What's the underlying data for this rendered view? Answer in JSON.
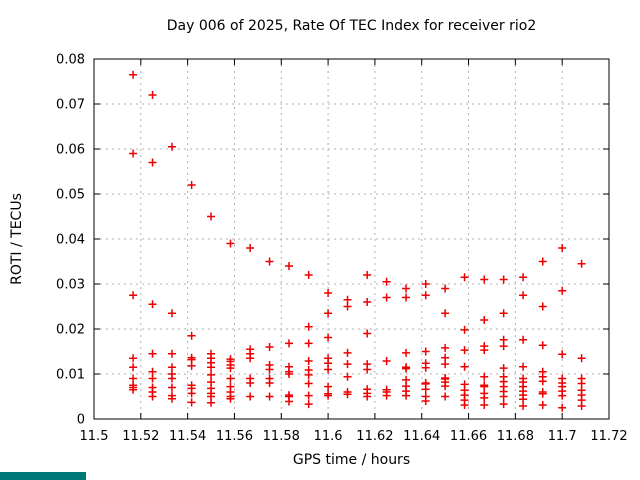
{
  "page": {
    "background": "#ffffff"
  },
  "decor": {
    "taskbar_fragment_color": "#007878"
  },
  "chart_data": {
    "type": "scatter",
    "title": "Day 006 of 2025, Rate Of TEC Index for receiver rio2",
    "xlabel": "GPS time / hours",
    "ylabel": "ROTI / TECUs",
    "xlim": [
      11.5,
      11.72
    ],
    "ylim": [
      0,
      0.08
    ],
    "grid": true,
    "legend_position": "none",
    "marker": "plus",
    "colors": {
      "marker": "#ee0000",
      "grid": "#b0b0b0",
      "axis": "#000000",
      "text": "#000000"
    },
    "xticks": {
      "values": [
        11.5,
        11.52,
        11.54,
        11.56,
        11.58,
        11.6,
        11.62,
        11.64,
        11.66,
        11.68,
        11.7,
        11.72
      ],
      "labels": [
        "11.5",
        "11.52",
        "11.54",
        "11.56",
        "11.58",
        "11.6",
        "11.62",
        "11.64",
        "11.66",
        "11.68",
        "11.7",
        "11.72"
      ]
    },
    "yticks": {
      "values": [
        0,
        0.01,
        0.02,
        0.03,
        0.04,
        0.05,
        0.06,
        0.07,
        0.08
      ],
      "labels": [
        "0",
        "0.01",
        "0.02",
        "0.03",
        "0.04",
        "0.05",
        "0.06",
        "0.07",
        "0.08"
      ]
    },
    "points": [
      [
        11.5167,
        0.0765
      ],
      [
        11.5167,
        0.059
      ],
      [
        11.5167,
        0.0275
      ],
      [
        11.5167,
        0.0135
      ],
      [
        11.5167,
        0.0115
      ],
      [
        11.5167,
        0.009
      ],
      [
        11.5167,
        0.0075
      ],
      [
        11.5167,
        0.007
      ],
      [
        11.5167,
        0.0065
      ],
      [
        11.525,
        0.072
      ],
      [
        11.525,
        0.057
      ],
      [
        11.525,
        0.0255
      ],
      [
        11.525,
        0.0145
      ],
      [
        11.525,
        0.0105
      ],
      [
        11.525,
        0.009
      ],
      [
        11.525,
        0.007
      ],
      [
        11.525,
        0.006
      ],
      [
        11.525,
        0.005
      ],
      [
        11.5333,
        0.0605
      ],
      [
        11.5333,
        0.0235
      ],
      [
        11.5333,
        0.0145
      ],
      [
        11.5333,
        0.0115
      ],
      [
        11.5333,
        0.01
      ],
      [
        11.5333,
        0.009
      ],
      [
        11.5333,
        0.007
      ],
      [
        11.5333,
        0.0052
      ],
      [
        11.5333,
        0.0045
      ],
      [
        11.5417,
        0.052
      ],
      [
        11.5417,
        0.0185
      ],
      [
        11.5417,
        0.0136
      ],
      [
        11.5417,
        0.0132
      ],
      [
        11.5417,
        0.0118
      ],
      [
        11.5417,
        0.0075
      ],
      [
        11.5417,
        0.0068
      ],
      [
        11.5417,
        0.0057
      ],
      [
        11.5417,
        0.0037
      ],
      [
        11.55,
        0.045
      ],
      [
        11.55,
        0.0145
      ],
      [
        11.55,
        0.0135
      ],
      [
        11.55,
        0.0125
      ],
      [
        11.55,
        0.0115
      ],
      [
        11.55,
        0.0098
      ],
      [
        11.55,
        0.0082
      ],
      [
        11.55,
        0.0068
      ],
      [
        11.55,
        0.0057
      ],
      [
        11.55,
        0.005
      ],
      [
        11.55,
        0.0036
      ],
      [
        11.5583,
        0.039
      ],
      [
        11.5583,
        0.0133
      ],
      [
        11.5583,
        0.0128
      ],
      [
        11.5583,
        0.012
      ],
      [
        11.5583,
        0.0113
      ],
      [
        11.5583,
        0.009
      ],
      [
        11.5583,
        0.0072
      ],
      [
        11.5583,
        0.006
      ],
      [
        11.5583,
        0.005
      ],
      [
        11.5583,
        0.0045
      ],
      [
        11.5667,
        0.038
      ],
      [
        11.5667,
        0.0155
      ],
      [
        11.5667,
        0.0145
      ],
      [
        11.5667,
        0.0135
      ],
      [
        11.5667,
        0.009
      ],
      [
        11.5667,
        0.008
      ],
      [
        11.5667,
        0.005
      ],
      [
        11.575,
        0.035
      ],
      [
        11.575,
        0.016
      ],
      [
        11.575,
        0.012
      ],
      [
        11.575,
        0.011
      ],
      [
        11.575,
        0.009
      ],
      [
        11.575,
        0.008
      ],
      [
        11.575,
        0.005
      ],
      [
        11.5833,
        0.034
      ],
      [
        11.5833,
        0.0168
      ],
      [
        11.5833,
        0.0116
      ],
      [
        11.5833,
        0.0105
      ],
      [
        11.5833,
        0.01
      ],
      [
        11.5833,
        0.0053
      ],
      [
        11.5833,
        0.005
      ],
      [
        11.5833,
        0.0039
      ],
      [
        11.5917,
        0.032
      ],
      [
        11.5917,
        0.0205
      ],
      [
        11.5917,
        0.0168
      ],
      [
        11.5917,
        0.0129
      ],
      [
        11.5917,
        0.0109
      ],
      [
        11.5917,
        0.0098
      ],
      [
        11.5917,
        0.0079
      ],
      [
        11.5917,
        0.0052
      ],
      [
        11.5917,
        0.0033
      ],
      [
        11.6,
        0.028
      ],
      [
        11.6,
        0.0235
      ],
      [
        11.6,
        0.0181
      ],
      [
        11.6,
        0.0135
      ],
      [
        11.6,
        0.0124
      ],
      [
        11.6,
        0.011
      ],
      [
        11.6,
        0.0072
      ],
      [
        11.6,
        0.0056
      ],
      [
        11.6,
        0.0052
      ],
      [
        11.6083,
        0.0265
      ],
      [
        11.6083,
        0.025
      ],
      [
        11.6083,
        0.0147
      ],
      [
        11.6083,
        0.0122
      ],
      [
        11.6083,
        0.0094
      ],
      [
        11.6083,
        0.006
      ],
      [
        11.6083,
        0.0055
      ],
      [
        11.6167,
        0.032
      ],
      [
        11.6167,
        0.026
      ],
      [
        11.6167,
        0.019
      ],
      [
        11.6167,
        0.0122
      ],
      [
        11.6167,
        0.011
      ],
      [
        11.6167,
        0.0066
      ],
      [
        11.6167,
        0.0057
      ],
      [
        11.6167,
        0.005
      ],
      [
        11.625,
        0.0305
      ],
      [
        11.625,
        0.027
      ],
      [
        11.625,
        0.0129
      ],
      [
        11.625,
        0.0065
      ],
      [
        11.625,
        0.006
      ],
      [
        11.625,
        0.0052
      ],
      [
        11.6333,
        0.029
      ],
      [
        11.6333,
        0.027
      ],
      [
        11.6333,
        0.0147
      ],
      [
        11.6333,
        0.0115
      ],
      [
        11.6333,
        0.0112
      ],
      [
        11.6333,
        0.0087
      ],
      [
        11.6333,
        0.0073
      ],
      [
        11.6333,
        0.0062
      ],
      [
        11.6333,
        0.0052
      ],
      [
        11.6417,
        0.03
      ],
      [
        11.6417,
        0.0275
      ],
      [
        11.6417,
        0.015
      ],
      [
        11.6417,
        0.0124
      ],
      [
        11.6417,
        0.0114
      ],
      [
        11.6417,
        0.008
      ],
      [
        11.6417,
        0.0078
      ],
      [
        11.6417,
        0.0066
      ],
      [
        11.6417,
        0.005
      ],
      [
        11.6417,
        0.004
      ],
      [
        11.65,
        0.029
      ],
      [
        11.65,
        0.0235
      ],
      [
        11.65,
        0.0158
      ],
      [
        11.65,
        0.0136
      ],
      [
        11.65,
        0.0122
      ],
      [
        11.65,
        0.0091
      ],
      [
        11.65,
        0.0089
      ],
      [
        11.65,
        0.0082
      ],
      [
        11.65,
        0.0073
      ],
      [
        11.65,
        0.005
      ],
      [
        11.6583,
        0.0315
      ],
      [
        11.6583,
        0.0198
      ],
      [
        11.6583,
        0.0153
      ],
      [
        11.6583,
        0.0116
      ],
      [
        11.6583,
        0.0077
      ],
      [
        11.6583,
        0.0064
      ],
      [
        11.6583,
        0.0053
      ],
      [
        11.6583,
        0.0042
      ],
      [
        11.6583,
        0.0031
      ],
      [
        11.6667,
        0.031
      ],
      [
        11.6667,
        0.022
      ],
      [
        11.6667,
        0.0162
      ],
      [
        11.6667,
        0.0153
      ],
      [
        11.6667,
        0.0094
      ],
      [
        11.6667,
        0.0075
      ],
      [
        11.6667,
        0.0072
      ],
      [
        11.6667,
        0.0057
      ],
      [
        11.6667,
        0.0047
      ],
      [
        11.6667,
        0.0031
      ],
      [
        11.675,
        0.031
      ],
      [
        11.675,
        0.0235
      ],
      [
        11.675,
        0.0176
      ],
      [
        11.675,
        0.0162
      ],
      [
        11.675,
        0.0113
      ],
      [
        11.675,
        0.0094
      ],
      [
        11.675,
        0.0083
      ],
      [
        11.675,
        0.0072
      ],
      [
        11.675,
        0.0061
      ],
      [
        11.675,
        0.005
      ],
      [
        11.675,
        0.0033
      ],
      [
        11.6833,
        0.0315
      ],
      [
        11.6833,
        0.0275
      ],
      [
        11.6833,
        0.0176
      ],
      [
        11.6833,
        0.0116
      ],
      [
        11.6833,
        0.009
      ],
      [
        11.6833,
        0.0082
      ],
      [
        11.6833,
        0.0072
      ],
      [
        11.6833,
        0.0062
      ],
      [
        11.6833,
        0.0053
      ],
      [
        11.6833,
        0.0044
      ],
      [
        11.6833,
        0.0029
      ],
      [
        11.6917,
        0.035
      ],
      [
        11.6917,
        0.025
      ],
      [
        11.6917,
        0.0164
      ],
      [
        11.6917,
        0.0105
      ],
      [
        11.6917,
        0.0094
      ],
      [
        11.6917,
        0.0084
      ],
      [
        11.6917,
        0.006
      ],
      [
        11.6917,
        0.0056
      ],
      [
        11.6917,
        0.0031
      ],
      [
        11.7,
        0.038
      ],
      [
        11.7,
        0.0285
      ],
      [
        11.7,
        0.0144
      ],
      [
        11.7,
        0.009
      ],
      [
        11.7,
        0.008
      ],
      [
        11.7,
        0.0072
      ],
      [
        11.7,
        0.0062
      ],
      [
        11.7,
        0.0052
      ],
      [
        11.7,
        0.0025
      ],
      [
        11.7083,
        0.0345
      ],
      [
        11.7083,
        0.0135
      ],
      [
        11.7083,
        0.009
      ],
      [
        11.7083,
        0.0079
      ],
      [
        11.7083,
        0.0064
      ],
      [
        11.7083,
        0.0053
      ],
      [
        11.7083,
        0.0042
      ],
      [
        11.7083,
        0.0029
      ]
    ]
  }
}
